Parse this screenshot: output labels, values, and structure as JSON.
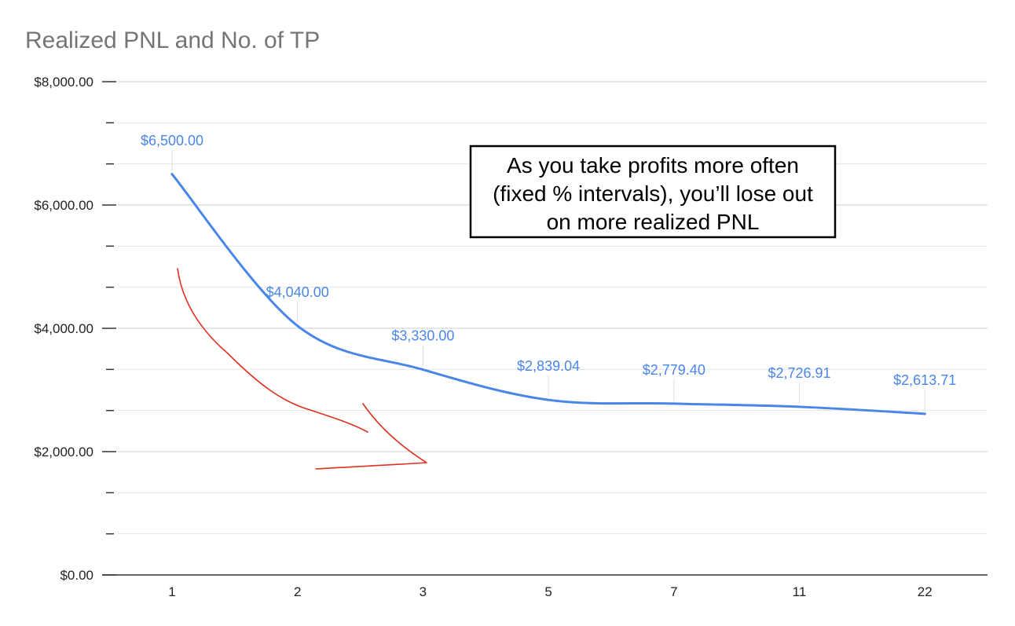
{
  "chart_data": {
    "type": "line",
    "title": "Realized PNL and No. of TP",
    "xlabel": "",
    "ylabel": "",
    "categories": [
      "1",
      "2",
      "3",
      "5",
      "7",
      "11",
      "22"
    ],
    "series": [
      {
        "values": [
          6500.0,
          4040.0,
          3330.0,
          2839.04,
          2779.4,
          2726.91,
          2613.71
        ],
        "data_labels": [
          "$6,500.00",
          "$4,040.00",
          "$3,330.00",
          "$2,839.04",
          "$2,779.40",
          "$2,726.91",
          "$2,613.71"
        ],
        "color": "#4a86e8",
        "smooth": true
      }
    ],
    "ylim": [
      0,
      8000
    ],
    "y_ticks": [
      {
        "value": 0,
        "label": "$0.00"
      },
      {
        "value": 2000,
        "label": "$2,000.00"
      },
      {
        "value": 4000,
        "label": "$4,000.00"
      },
      {
        "value": 6000,
        "label": "$6,000.00"
      },
      {
        "value": 8000,
        "label": "$8,000.00"
      }
    ],
    "y_minor_step": 666.67,
    "grid": true,
    "annotations": [
      {
        "type": "text-box",
        "lines": [
          "As you take profits more often",
          "(fixed % intervals), you’ll lose out",
          "on more realized PNL"
        ]
      },
      {
        "type": "hand-drawn-arrow",
        "color": "#e0301e",
        "direction": "down-right"
      }
    ]
  },
  "colors": {
    "series": "#4a86e8",
    "gridline": "#d9d9d9",
    "axis": "#333333",
    "title": "#757575",
    "arrow": "#e0301e"
  }
}
